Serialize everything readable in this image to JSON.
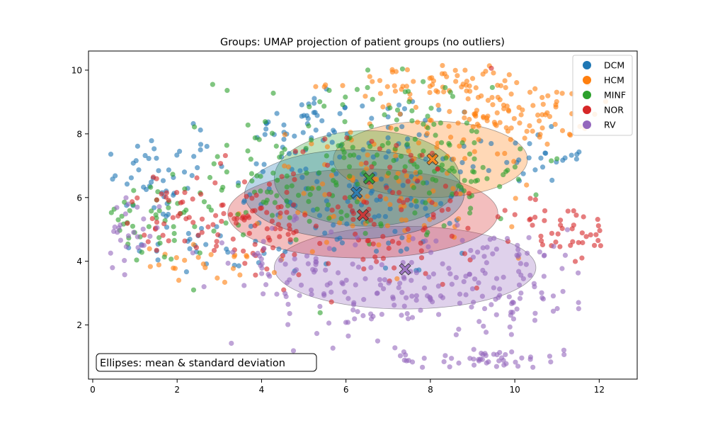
{
  "chart_data": {
    "type": "scatter",
    "title": "Groups: UMAP projection of patient groups (no outliers)",
    "xlabel": "",
    "ylabel": "",
    "xlim": [
      -0.1,
      12.9
    ],
    "ylim": [
      0.3,
      10.6
    ],
    "xticks": [
      0,
      2,
      4,
      6,
      8,
      10,
      12
    ],
    "yticks": [
      2,
      4,
      6,
      8,
      10
    ],
    "legend_position": "top-right",
    "annotation": "Ellipses: mean & standard deviation",
    "series": [
      {
        "name": "DCM",
        "color": "#1f77b4",
        "mean": [
          6.2,
          6.1
        ],
        "std": [
          2.6,
          1.4
        ],
        "clusters": [
          {
            "cx": 1.5,
            "cy": 6.6,
            "sx": 0.8,
            "sy": 0.7,
            "n": 50
          },
          {
            "cx": 6.5,
            "cy": 6.5,
            "sx": 1.6,
            "sy": 1.6,
            "n": 140
          },
          {
            "cx": 5.0,
            "cy": 8.2,
            "sx": 0.6,
            "sy": 0.5,
            "n": 35
          },
          {
            "cx": 10.5,
            "cy": 7.3,
            "sx": 0.6,
            "sy": 0.4,
            "n": 25
          },
          {
            "cx": 2.5,
            "cy": 4.5,
            "sx": 0.8,
            "sy": 0.6,
            "n": 30
          }
        ]
      },
      {
        "name": "HCM",
        "color": "#ff7f0e",
        "mean": [
          8.0,
          7.2
        ],
        "std": [
          2.3,
          1.2
        ],
        "clusters": [
          {
            "cx": 9.8,
            "cy": 8.6,
            "sx": 1.0,
            "sy": 0.5,
            "n": 100
          },
          {
            "cx": 8.0,
            "cy": 9.6,
            "sx": 1.2,
            "sy": 0.3,
            "n": 60
          },
          {
            "cx": 7.2,
            "cy": 6.2,
            "sx": 1.6,
            "sy": 1.0,
            "n": 90
          },
          {
            "cx": 2.8,
            "cy": 3.9,
            "sx": 0.8,
            "sy": 0.3,
            "n": 25
          }
        ]
      },
      {
        "name": "MINF",
        "color": "#2ca02c",
        "mean": [
          6.5,
          6.6
        ],
        "std": [
          2.2,
          1.5
        ],
        "clusters": [
          {
            "cx": 6.2,
            "cy": 7.4,
            "sx": 1.6,
            "sy": 1.3,
            "n": 130
          },
          {
            "cx": 1.3,
            "cy": 5.2,
            "sx": 0.8,
            "sy": 0.7,
            "n": 45
          },
          {
            "cx": 8.6,
            "cy": 6.8,
            "sx": 1.0,
            "sy": 0.8,
            "n": 50
          },
          {
            "cx": 3.8,
            "cy": 5.8,
            "sx": 0.8,
            "sy": 0.7,
            "n": 35
          }
        ]
      },
      {
        "name": "NOR",
        "color": "#d62728",
        "mean": [
          6.4,
          5.5
        ],
        "std": [
          3.2,
          1.4
        ],
        "clusters": [
          {
            "cx": 3.6,
            "cy": 5.2,
            "sx": 1.0,
            "sy": 0.8,
            "n": 70
          },
          {
            "cx": 6.8,
            "cy": 5.6,
            "sx": 1.6,
            "sy": 1.3,
            "n": 110
          },
          {
            "cx": 11.2,
            "cy": 4.9,
            "sx": 0.6,
            "sy": 0.5,
            "n": 40
          },
          {
            "cx": 1.8,
            "cy": 5.4,
            "sx": 0.6,
            "sy": 0.6,
            "n": 25
          }
        ]
      },
      {
        "name": "RV",
        "color": "#9467bd",
        "mean": [
          7.4,
          3.8
        ],
        "std": [
          3.1,
          1.3
        ],
        "clusters": [
          {
            "cx": 9.4,
            "cy": 3.4,
            "sx": 1.3,
            "sy": 0.8,
            "n": 130
          },
          {
            "cx": 9.2,
            "cy": 0.9,
            "sx": 1.0,
            "sy": 0.2,
            "n": 55
          },
          {
            "cx": 6.5,
            "cy": 2.9,
            "sx": 1.0,
            "sy": 0.7,
            "n": 60
          },
          {
            "cx": 0.8,
            "cy": 4.9,
            "sx": 0.4,
            "sy": 0.6,
            "n": 30
          },
          {
            "cx": 4.6,
            "cy": 3.9,
            "sx": 1.0,
            "sy": 0.6,
            "n": 50
          }
        ]
      }
    ],
    "centroids": [
      {
        "name": "DCM",
        "color": "#1f77b4",
        "x": 6.25,
        "y": 6.15
      },
      {
        "name": "MINF",
        "color": "#2ca02c",
        "x": 6.55,
        "y": 6.6
      },
      {
        "name": "HCM",
        "color": "#ff7f0e",
        "x": 8.05,
        "y": 7.2
      },
      {
        "name": "NOR",
        "color": "#d62728",
        "x": 6.4,
        "y": 5.45
      },
      {
        "name": "RV",
        "color": "#9467bd",
        "x": 7.4,
        "y": 3.75
      }
    ]
  }
}
